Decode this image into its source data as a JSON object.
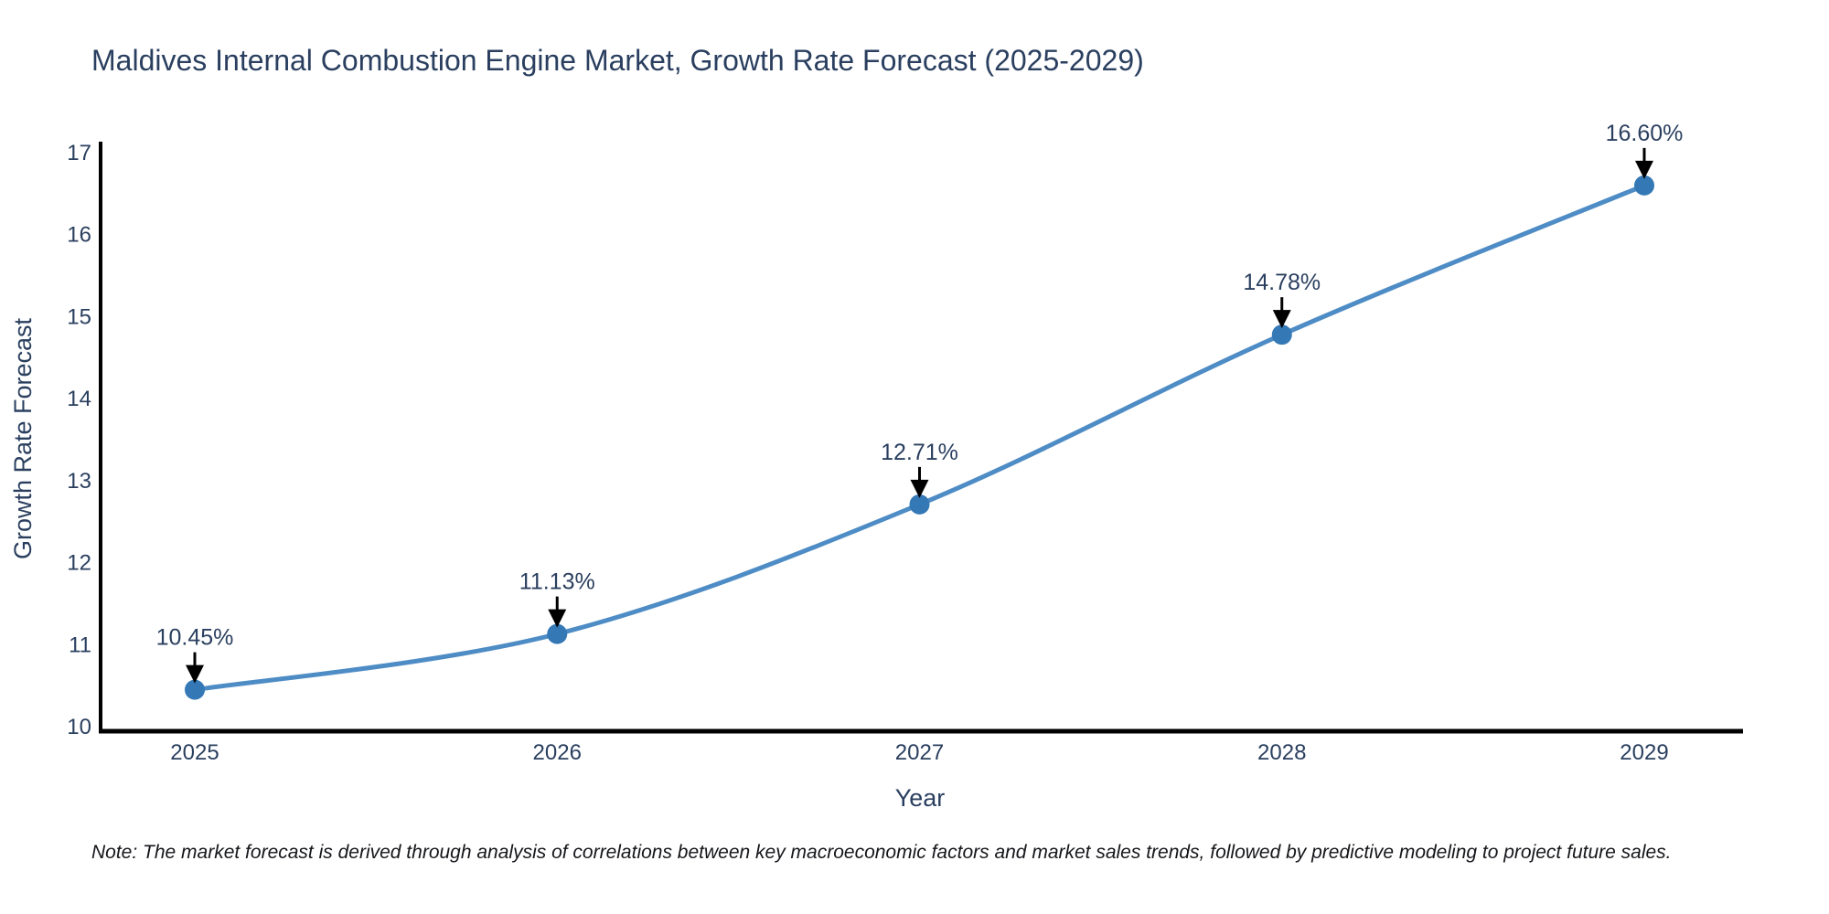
{
  "page": {
    "background_color": "#ffffff"
  },
  "footnote": "Note: The market forecast is derived through analysis of correlations between key macroeconomic factors and market sales trends, followed by predictive modeling to project future sales.",
  "chart_data": {
    "type": "line",
    "title": "Maldives Internal Combustion Engine Market, Growth Rate Forecast (2025-2029)",
    "xlabel": "Year",
    "ylabel": "Growth Rate Forecast",
    "x": [
      2025,
      2026,
      2027,
      2028,
      2029
    ],
    "values": [
      10.45,
      11.13,
      12.71,
      14.78,
      16.6
    ],
    "point_labels": [
      "10.45%",
      "11.13%",
      "12.71%",
      "14.78%",
      "16.60%"
    ],
    "xticks": [
      "2025",
      "2026",
      "2027",
      "2028",
      "2029"
    ],
    "yticks": [
      "10",
      "11",
      "12",
      "13",
      "14",
      "15",
      "16",
      "17"
    ],
    "ytick_values": [
      10,
      11,
      12,
      13,
      14,
      15,
      16,
      17
    ],
    "ylim": [
      10,
      17.2
    ],
    "line_shape": "spline",
    "grid": false,
    "legend_position": "none",
    "colors": {
      "line": "#4e8cc5",
      "marker": "#3478b5",
      "axis_spine": "#000000",
      "arrow": "#000000",
      "text": "#2a3f5f",
      "note_text": "#15161a"
    }
  }
}
